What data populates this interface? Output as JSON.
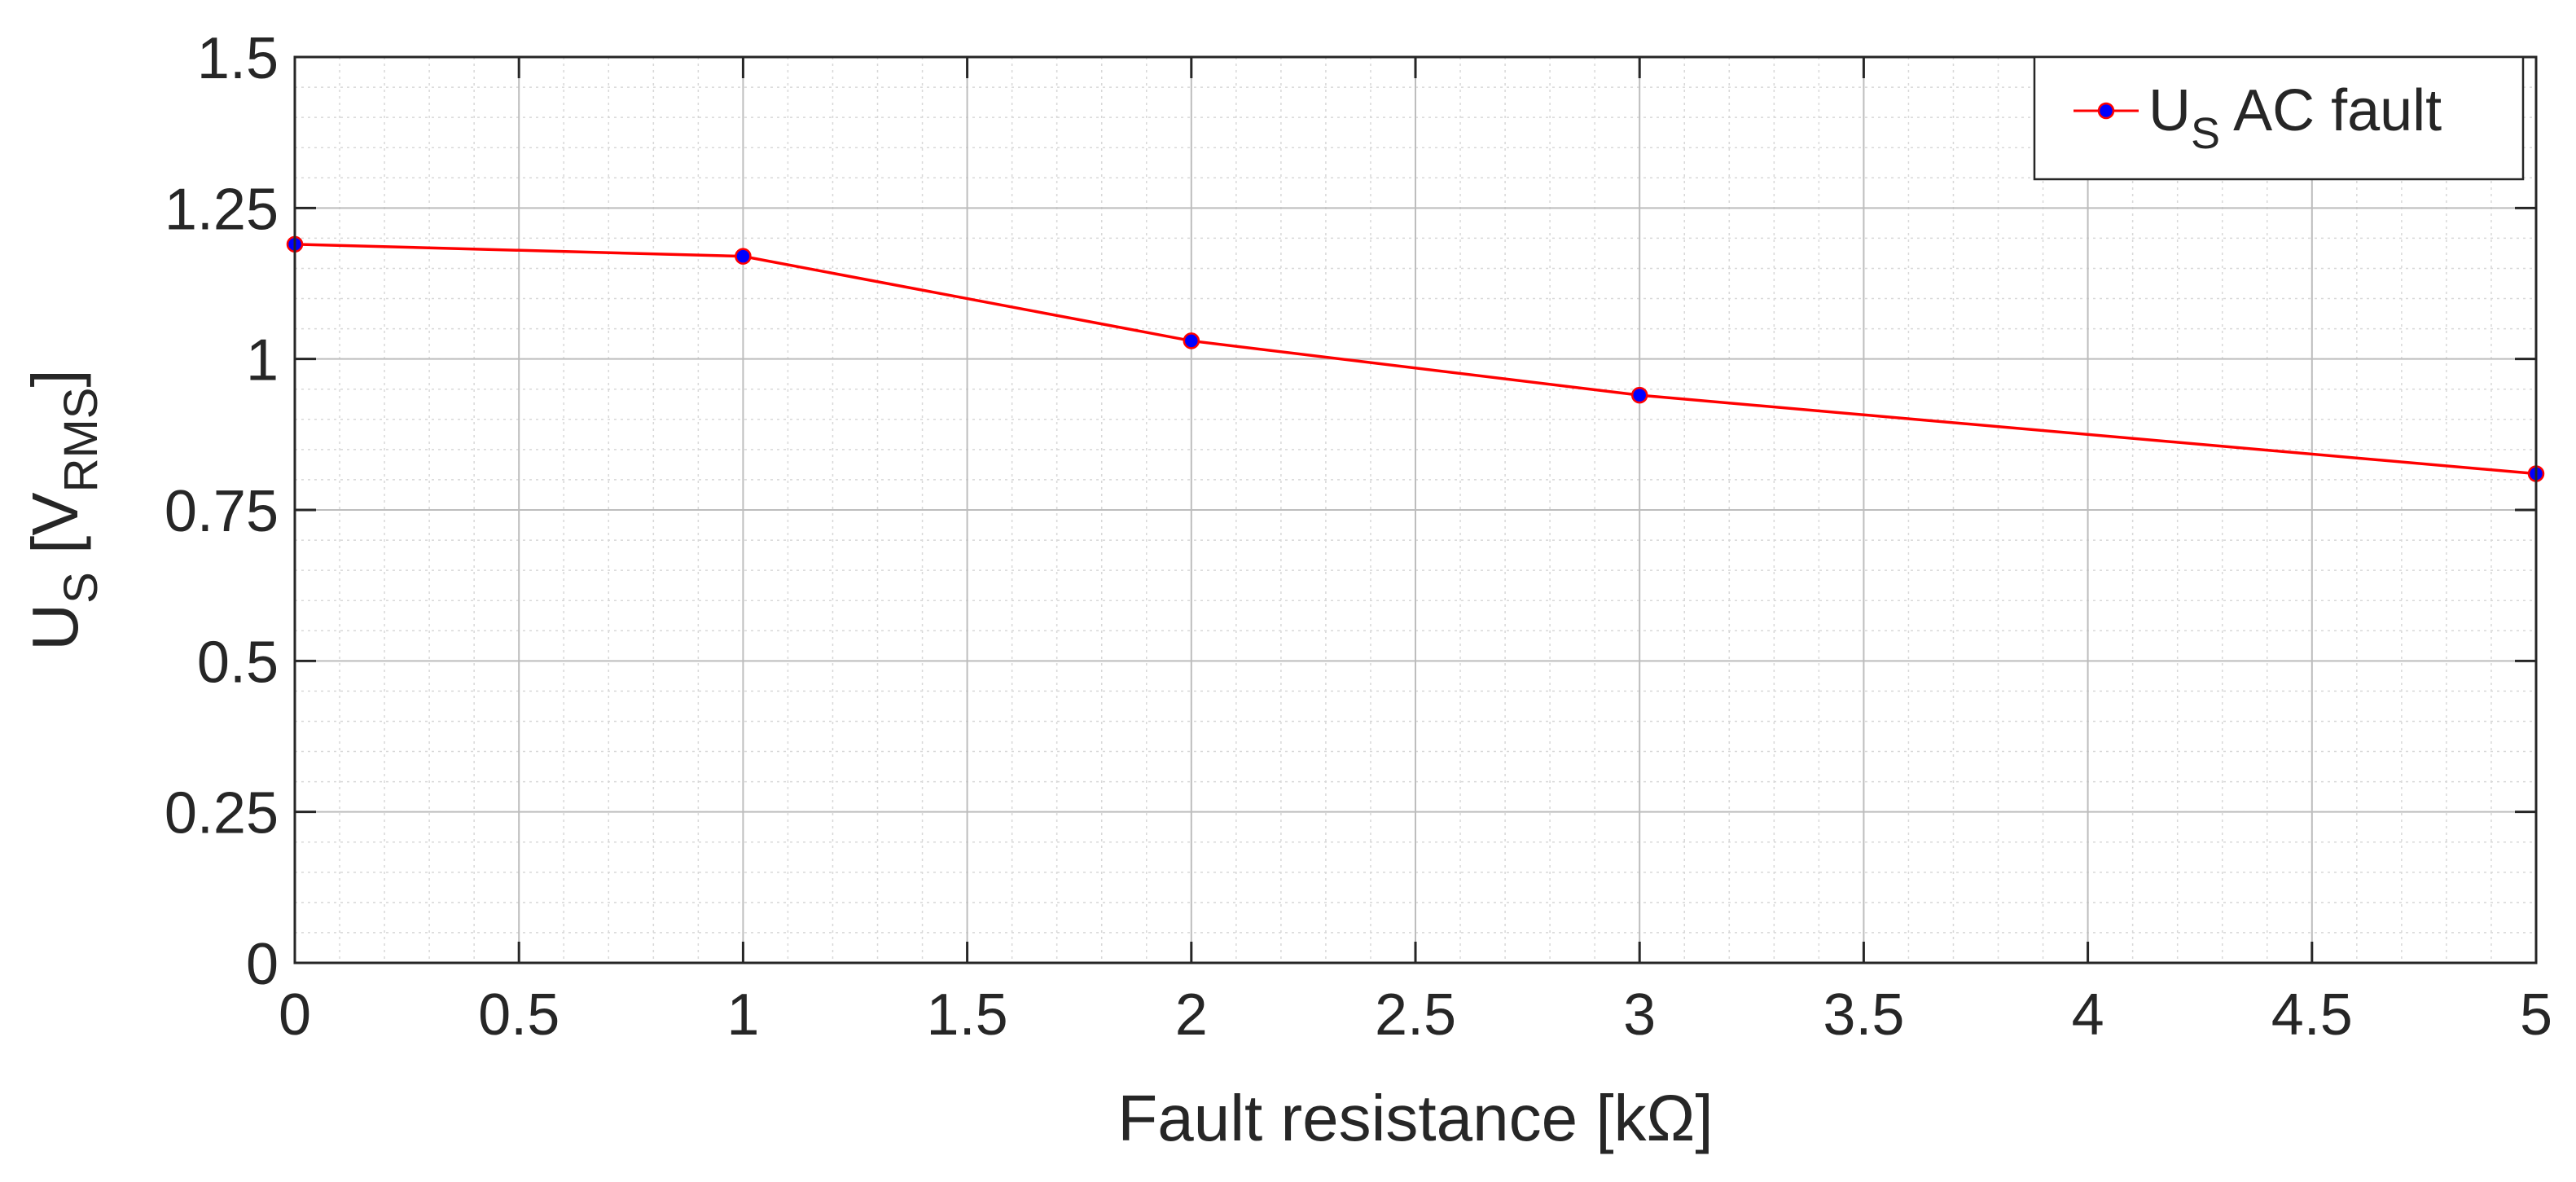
{
  "chart_data": {
    "type": "line",
    "title": "",
    "xlabel": "Fault resistance [kΩ]",
    "ylabel": {
      "main": "U",
      "sub": "S",
      "open": " [V",
      "unit_sub": "RMS",
      "close": "]"
    },
    "xlim": [
      0,
      5
    ],
    "ylim": [
      0,
      1.5
    ],
    "x_ticks": [
      "0",
      "0.5",
      "1",
      "1.5",
      "2",
      "2.5",
      "3",
      "3.5",
      "4",
      "4.5",
      "5"
    ],
    "y_ticks": [
      "0",
      "0.25",
      "0.5",
      "0.75",
      "1",
      "1.25",
      "1.5"
    ],
    "grid": true,
    "minor_grid": true,
    "legend_position": "top-right",
    "series": [
      {
        "name": {
          "main": "U",
          "sub": "S",
          "rest": " AC fault"
        },
        "line_color": "#ff0000",
        "marker_fill": "#0000ff",
        "x": [
          0,
          1,
          2,
          3,
          5
        ],
        "y": [
          1.19,
          1.17,
          1.03,
          0.94,
          0.81
        ]
      }
    ]
  }
}
